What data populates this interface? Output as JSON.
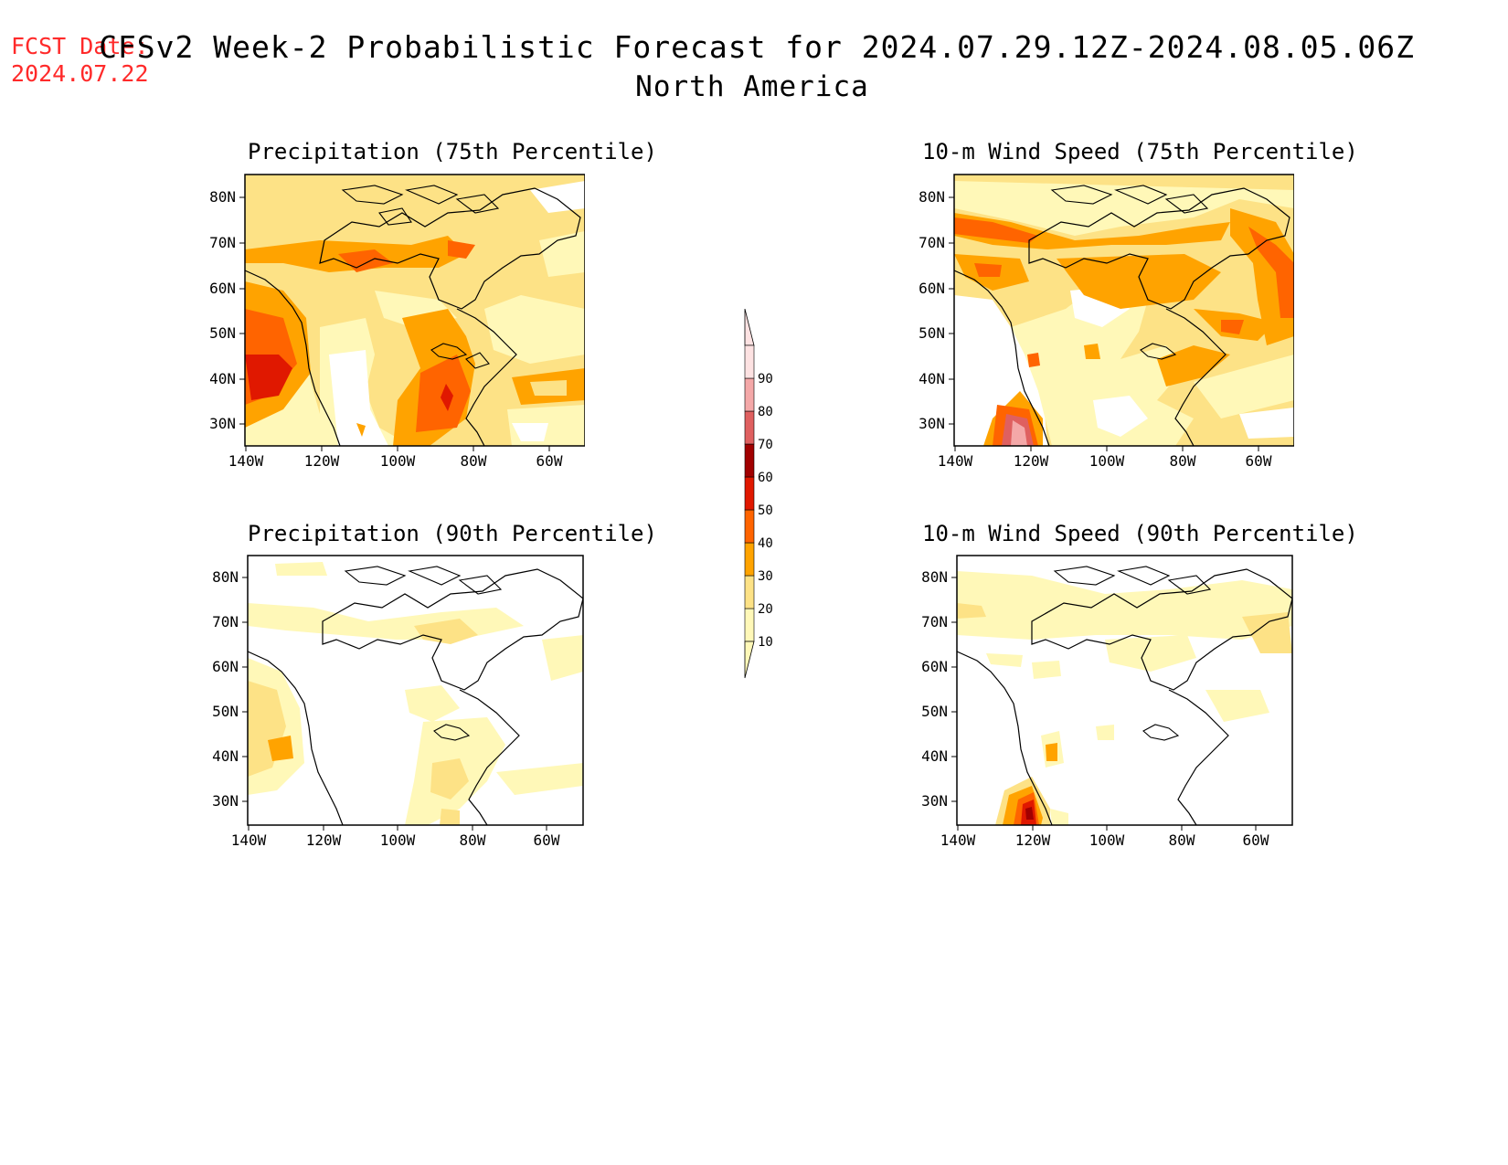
{
  "header": {
    "fcst_label": "FCST Date:",
    "fcst_date": "2024.07.22",
    "title": "CFSv2 Week-2 Probabilistic Forecast for 2024.07.29.12Z-2024.08.05.06Z",
    "subtitle": "North America"
  },
  "panels": [
    {
      "title": "Precipitation (75th Percentile)",
      "variable": "precipitation",
      "percentile": 75
    },
    {
      "title": "10-m Wind Speed (75th Percentile)",
      "variable": "wind_speed",
      "percentile": 75
    },
    {
      "title": "Precipitation (90th Percentile)",
      "variable": "precipitation",
      "percentile": 90
    },
    {
      "title": "10-m Wind Speed (90th Percentile)",
      "variable": "wind_speed",
      "percentile": 90
    }
  ],
  "axes": {
    "lat_labels": [
      "80N",
      "70N",
      "60N",
      "50N",
      "40N",
      "30N"
    ],
    "lon_labels": [
      "140W",
      "120W",
      "100W",
      "80W",
      "60W"
    ],
    "lat_range": [
      25,
      85
    ],
    "lon_range": [
      -140,
      -50
    ]
  },
  "colorbar": {
    "labels": [
      "10",
      "20",
      "30",
      "40",
      "50",
      "60",
      "70",
      "80",
      "90"
    ],
    "colors": [
      "#fff8b8",
      "#fde286",
      "#ffa300",
      "#ff6400",
      "#e01800",
      "#a10000",
      "#df6060",
      "#f4a8a8",
      "#fde2e2"
    ]
  }
}
